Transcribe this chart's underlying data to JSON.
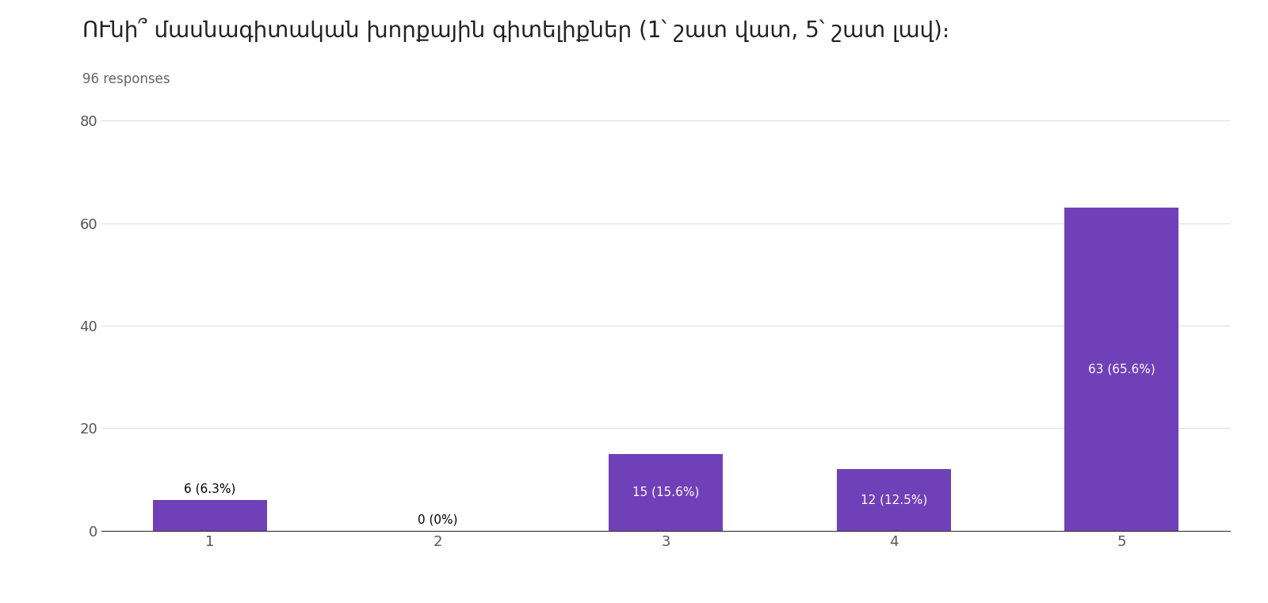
{
  "title": "ՈՒնի՞ մասնագիտական խորքային գիտելիքներ (1՝ շատ վատ, 5՝ շատ լավ)։",
  "subtitle": "96 responses",
  "categories": [
    "1",
    "2",
    "3",
    "4",
    "5"
  ],
  "values": [
    6,
    0,
    15,
    12,
    63
  ],
  "labels": [
    "6 (6.3%)",
    "0 (0%)",
    "15 (15.6%)",
    "12 (12.5%)",
    "63 (65.6%)"
  ],
  "bar_color": "#7040b8",
  "background_color": "#ffffff",
  "ylim": [
    0,
    80
  ],
  "yticks": [
    0,
    20,
    40,
    60,
    80
  ],
  "title_fontsize": 20,
  "subtitle_fontsize": 12,
  "label_fontsize": 11,
  "tick_fontsize": 13
}
